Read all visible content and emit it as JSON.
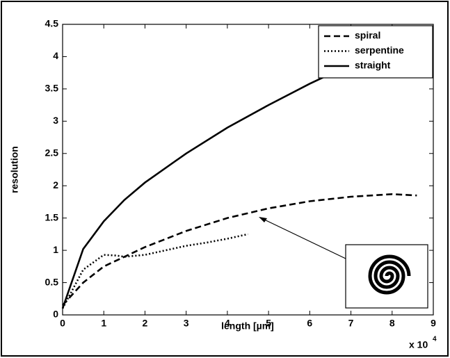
{
  "chart_data": {
    "type": "line",
    "xlabel": "length [µm]",
    "ylabel": "resolution",
    "x_multiplier": {
      "base": "x 10",
      "exponent": "4"
    },
    "xlim": [
      0,
      9
    ],
    "ylim": [
      0,
      4.5
    ],
    "xticks": [
      0,
      1,
      2,
      3,
      4,
      5,
      6,
      7,
      8,
      9
    ],
    "yticks": [
      0,
      0.5,
      1,
      1.5,
      2,
      2.5,
      3,
      3.5,
      4,
      4.5
    ],
    "legend": "upper right",
    "series": [
      {
        "name": "spiral",
        "color": "#000000",
        "line_style": "dashed",
        "x": [
          0,
          0.5,
          1,
          2,
          3,
          4,
          5,
          6,
          7,
          8,
          8.6
        ],
        "values": [
          0.15,
          0.5,
          0.75,
          1.05,
          1.3,
          1.5,
          1.65,
          1.76,
          1.83,
          1.87,
          1.85
        ]
      },
      {
        "name": "serpentine",
        "color": "#000000",
        "line_style": "dotted",
        "x": [
          0,
          0.5,
          1,
          1.3,
          1.5,
          2,
          2.5,
          3,
          3.5,
          4,
          4.5
        ],
        "values": [
          0.1,
          0.7,
          0.93,
          0.92,
          0.9,
          0.93,
          1.0,
          1.07,
          1.12,
          1.18,
          1.25
        ]
      },
      {
        "name": "straight",
        "color": "#000000",
        "line_style": "solid",
        "x": [
          0,
          0.5,
          1,
          1.5,
          2,
          3,
          4,
          5,
          6,
          7,
          8,
          8.6
        ],
        "values": [
          0.1,
          1.02,
          1.45,
          1.78,
          2.05,
          2.5,
          2.9,
          3.25,
          3.58,
          3.88,
          4.15,
          4.3
        ]
      }
    ]
  }
}
